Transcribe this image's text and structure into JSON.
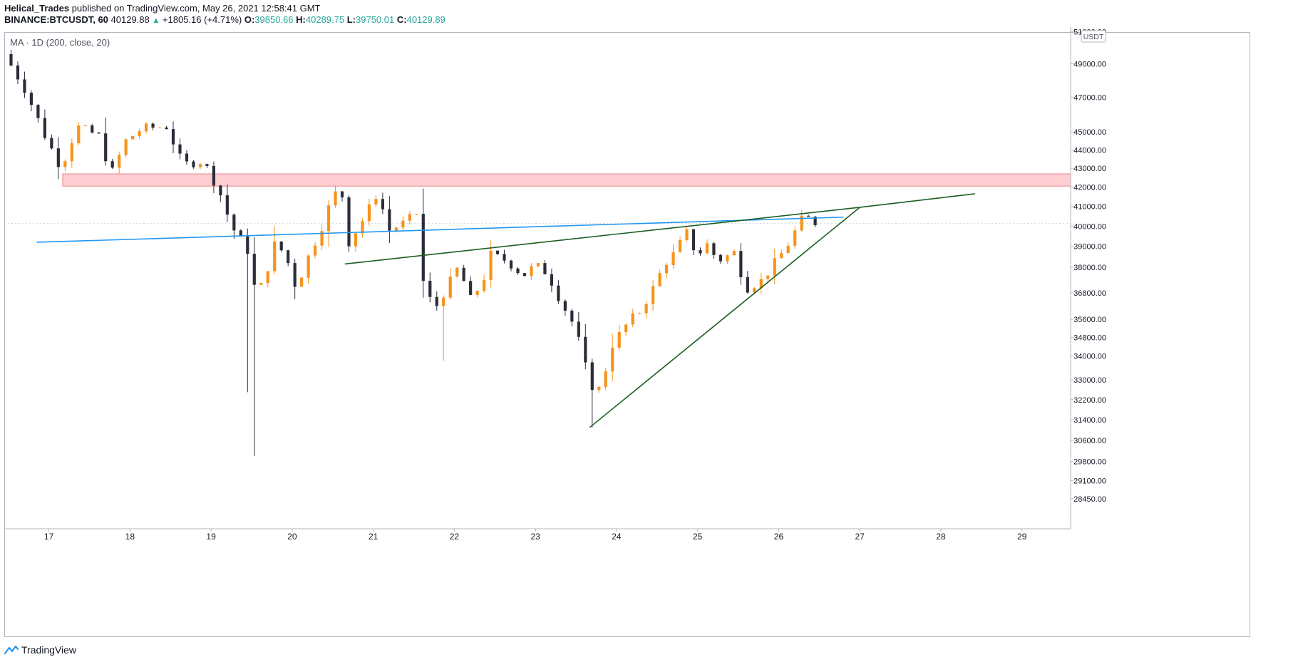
{
  "header": {
    "author": "Helical_Trades",
    "published": "published on TradingView.com, May 26, 2021 12:58:41 GMT",
    "symbol": "BINANCE:BTCUSDT, 60",
    "last": "40129.88",
    "change": "+1805.16 (+4.71%)",
    "open_label": "O:",
    "open": "39850.66",
    "high_label": "H:",
    "high": "40289.75",
    "low_label": "L:",
    "low": "39750.01",
    "close_label": "C:",
    "close": "40129.89"
  },
  "indicator": {
    "label": "MA · 1D (200, close, 20)"
  },
  "footer": {
    "brand": "TradingView",
    "logo_icon": "tradingview-logo-icon"
  },
  "colors": {
    "bull": "#f7931a",
    "bear": "#2a2e39",
    "ma": "#2196f3",
    "trend": "#1b5e20",
    "zone_fill": "#ffcdd2",
    "zone_stroke": "#e57373",
    "grid_axis": "#b2b5be",
    "text": "#131722",
    "accent_up": "#26a69a"
  },
  "chart_data": {
    "type": "candlestick",
    "title": "",
    "x_axis": {
      "type": "date",
      "ticks": [
        "17",
        "18",
        "19",
        "20",
        "21",
        "22",
        "23",
        "24",
        "25",
        "26",
        "27",
        "28",
        "29"
      ],
      "range": [
        16.45,
        29.6
      ]
    },
    "y_axis": {
      "scale": "log",
      "unit": "USDT",
      "ticks": [
        "51000.00",
        "49000.00",
        "47000.00",
        "45000.00",
        "44000.00",
        "43000.00",
        "42000.00",
        "41000.00",
        "40000.00",
        "39000.00",
        "38000.00",
        "36800.00",
        "35600.00",
        "34800.00",
        "34000.00",
        "33000.00",
        "32200.00",
        "31400.00",
        "30600.00",
        "29800.00",
        "29100.00",
        "28450.00"
      ],
      "range": [
        27400,
        51300
      ]
    },
    "grid": false,
    "resistance_zone": {
      "x_start": 17.17,
      "y_low": 42050,
      "y_high": 42700
    },
    "ma_line": {
      "name": "MA · 1D (200, close, 20)",
      "points": [
        [
          16.85,
          39200
        ],
        [
          26.8,
          40450
        ]
      ]
    },
    "trendlines": [
      {
        "points": [
          [
            20.65,
            38150
          ],
          [
            27.0,
            40950
          ]
        ]
      },
      {
        "points": [
          [
            27.0,
            40950
          ],
          [
            28.42,
            41650
          ]
        ]
      },
      {
        "points": [
          [
            23.67,
            31100
          ],
          [
            27.0,
            40950
          ]
        ]
      }
    ],
    "waypoints": [
      [
        16.45,
        49600
      ],
      [
        16.7,
        47500
      ],
      [
        16.95,
        44800
      ],
      [
        17.15,
        43000
      ],
      [
        17.35,
        45300
      ],
      [
        17.65,
        44700
      ],
      [
        17.75,
        42500
      ],
      [
        17.95,
        44500
      ],
      [
        18.15,
        45200
      ],
      [
        18.45,
        45300
      ],
      [
        18.65,
        43200
      ],
      [
        18.9,
        43400
      ],
      [
        19.1,
        41800
      ],
      [
        19.25,
        40000
      ],
      [
        19.5,
        38500
      ],
      [
        19.55,
        36400
      ],
      [
        19.7,
        38000
      ],
      [
        19.8,
        39300
      ],
      [
        19.95,
        38200
      ],
      [
        20.05,
        37000
      ],
      [
        20.2,
        38500
      ],
      [
        20.35,
        39800
      ],
      [
        20.5,
        41500
      ],
      [
        20.6,
        42000
      ],
      [
        20.7,
        39200
      ],
      [
        20.9,
        40500
      ],
      [
        21.05,
        41700
      ],
      [
        21.2,
        39800
      ],
      [
        21.4,
        40200
      ],
      [
        21.55,
        40700
      ],
      [
        21.6,
        37500
      ],
      [
        21.75,
        36000
      ],
      [
        21.9,
        37000
      ],
      [
        22.05,
        38000
      ],
      [
        22.2,
        36500
      ],
      [
        22.35,
        37300
      ],
      [
        22.45,
        38600
      ],
      [
        22.65,
        38300
      ],
      [
        22.85,
        37600
      ],
      [
        23.0,
        38100
      ],
      [
        23.15,
        37700
      ],
      [
        23.3,
        36500
      ],
      [
        23.45,
        35500
      ],
      [
        23.55,
        34500
      ],
      [
        23.67,
        32800
      ],
      [
        23.8,
        32600
      ],
      [
        23.95,
        34500
      ],
      [
        24.15,
        35500
      ],
      [
        24.3,
        36000
      ],
      [
        24.45,
        37000
      ],
      [
        24.6,
        38200
      ],
      [
        24.75,
        38800
      ],
      [
        24.85,
        39800
      ],
      [
        25.0,
        38500
      ],
      [
        25.1,
        39200
      ],
      [
        25.25,
        38300
      ],
      [
        25.45,
        38700
      ],
      [
        25.6,
        37000
      ],
      [
        25.8,
        37400
      ],
      [
        25.95,
        38200
      ],
      [
        26.1,
        39000
      ],
      [
        26.28,
        40300
      ],
      [
        26.38,
        40400
      ],
      [
        26.5,
        40000
      ]
    ],
    "candle_interval_hours": 2
  }
}
